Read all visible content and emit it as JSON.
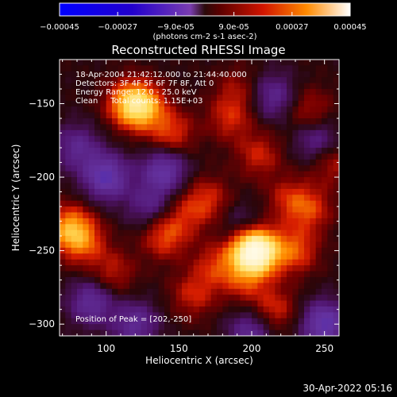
{
  "chart_data": {
    "type": "heatmap",
    "title": "Reconstructed RHESSI Image",
    "xlabel": "Heliocentric X (arcsec)",
    "ylabel": "Heliocentric Y (arcsec)",
    "xlim": [
      68,
      260
    ],
    "ylim": [
      -308,
      -120
    ],
    "xticks": [
      100,
      150,
      200,
      250
    ],
    "yticks": [
      -150,
      -200,
      -250,
      -300
    ],
    "colorbar": {
      "range": [
        -0.00045,
        0.00045
      ],
      "tick_labels": [
        "-0.00045",
        "-0.00027",
        "-9.0e-05",
        "9.0e-05",
        "0.00027",
        "0.00045"
      ],
      "units": "(photons cm-2 s-1 asec-2)"
    },
    "info_lines": [
      "18-Apr-2004 21:42:12.000 to 21:44:40.000",
      "Detectors: 3F 4F 5F 6F 7F 8F, Att 0",
      "Energy Range: 12.0 - 25.0 keV",
      "Clean     Total counts: 1.15E+03"
    ],
    "peak_label": "Position of Peak = [202,-250]",
    "peak": {
      "x": 202,
      "y": -250
    },
    "grid": {
      "nx": 48,
      "ny": 47
    },
    "blobs": [
      {
        "x": 200,
        "y": -248,
        "amp": 2.6
      },
      {
        "x": 205,
        "y": -252,
        "amp": 1.6
      },
      {
        "x": 125,
        "y": -152,
        "amp": 1.8
      },
      {
        "x": 115,
        "y": -150,
        "amp": 1.4
      },
      {
        "x": 145,
        "y": -170,
        "amp": 1.1
      },
      {
        "x": 75,
        "y": -235,
        "amp": 1.7
      },
      {
        "x": 85,
        "y": -245,
        "amp": 1.0
      },
      {
        "x": 140,
        "y": -240,
        "amp": 1.2
      },
      {
        "x": 230,
        "y": -250,
        "amp": 1.2
      },
      {
        "x": 240,
        "y": -222,
        "amp": 1.0
      },
      {
        "x": 170,
        "y": -215,
        "amp": 0.9
      },
      {
        "x": 205,
        "y": -185,
        "amp": 0.9
      },
      {
        "x": 255,
        "y": -190,
        "amp": 0.8
      },
      {
        "x": 215,
        "y": -290,
        "amp": 1.0
      },
      {
        "x": 105,
        "y": -265,
        "amp": 0.8
      },
      {
        "x": 160,
        "y": -280,
        "amp": 0.9
      },
      {
        "x": 185,
        "y": -160,
        "amp": 0.9
      },
      {
        "x": 240,
        "y": -155,
        "amp": 0.8
      },
      {
        "x": 175,
        "y": -260,
        "amp": 0.9
      },
      {
        "x": 225,
        "y": -215,
        "amp": 0.8
      },
      {
        "x": 195,
        "y": -270,
        "amp": 0.9
      },
      {
        "x": 190,
        "y": -140,
        "amp": 0.6
      },
      {
        "x": 155,
        "y": -225,
        "amp": 0.7
      },
      {
        "x": 100,
        "y": -200,
        "amp": -1.6
      },
      {
        "x": 140,
        "y": -195,
        "amp": -1.4
      },
      {
        "x": 250,
        "y": -300,
        "amp": -1.6
      },
      {
        "x": 245,
        "y": -175,
        "amp": -1.0
      },
      {
        "x": 90,
        "y": -285,
        "amp": -1.2
      },
      {
        "x": 195,
        "y": -235,
        "amp": -0.9
      },
      {
        "x": 200,
        "y": -305,
        "amp": -1.1
      },
      {
        "x": 80,
        "y": -180,
        "amp": -1.0
      },
      {
        "x": 215,
        "y": -145,
        "amp": -1.0
      },
      {
        "x": 120,
        "y": -300,
        "amp": -1.1
      },
      {
        "x": 130,
        "y": -220,
        "amp": -0.9
      }
    ]
  },
  "timestamp": "30-Apr-2022 05:16"
}
